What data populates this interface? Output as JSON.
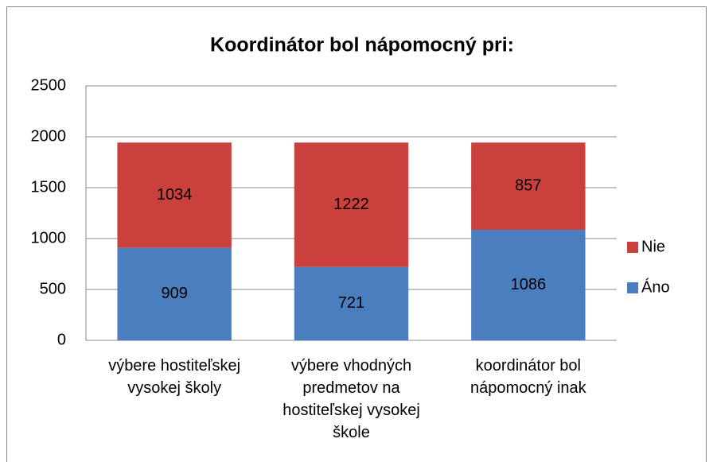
{
  "chart_data": {
    "type": "stacked_bar",
    "title": "Koordinátor bol nápomocný pri:",
    "categories": [
      "výbere hostiteľskej vysokej školy",
      "výbere vhodných predmetov na hostiteľskej vysokej škole",
      "koordinátor bol nápomocný inak"
    ],
    "series": [
      {
        "name": "Áno",
        "color": "#4a7ebf",
        "values": [
          909,
          721,
          1086
        ]
      },
      {
        "name": "Nie",
        "color": "#c9403d",
        "values": [
          1034,
          1222,
          857
        ]
      }
    ],
    "ylim": [
      0,
      2500
    ],
    "yticks": [
      0,
      500,
      1000,
      1500,
      2000,
      2500
    ],
    "grid": true
  }
}
